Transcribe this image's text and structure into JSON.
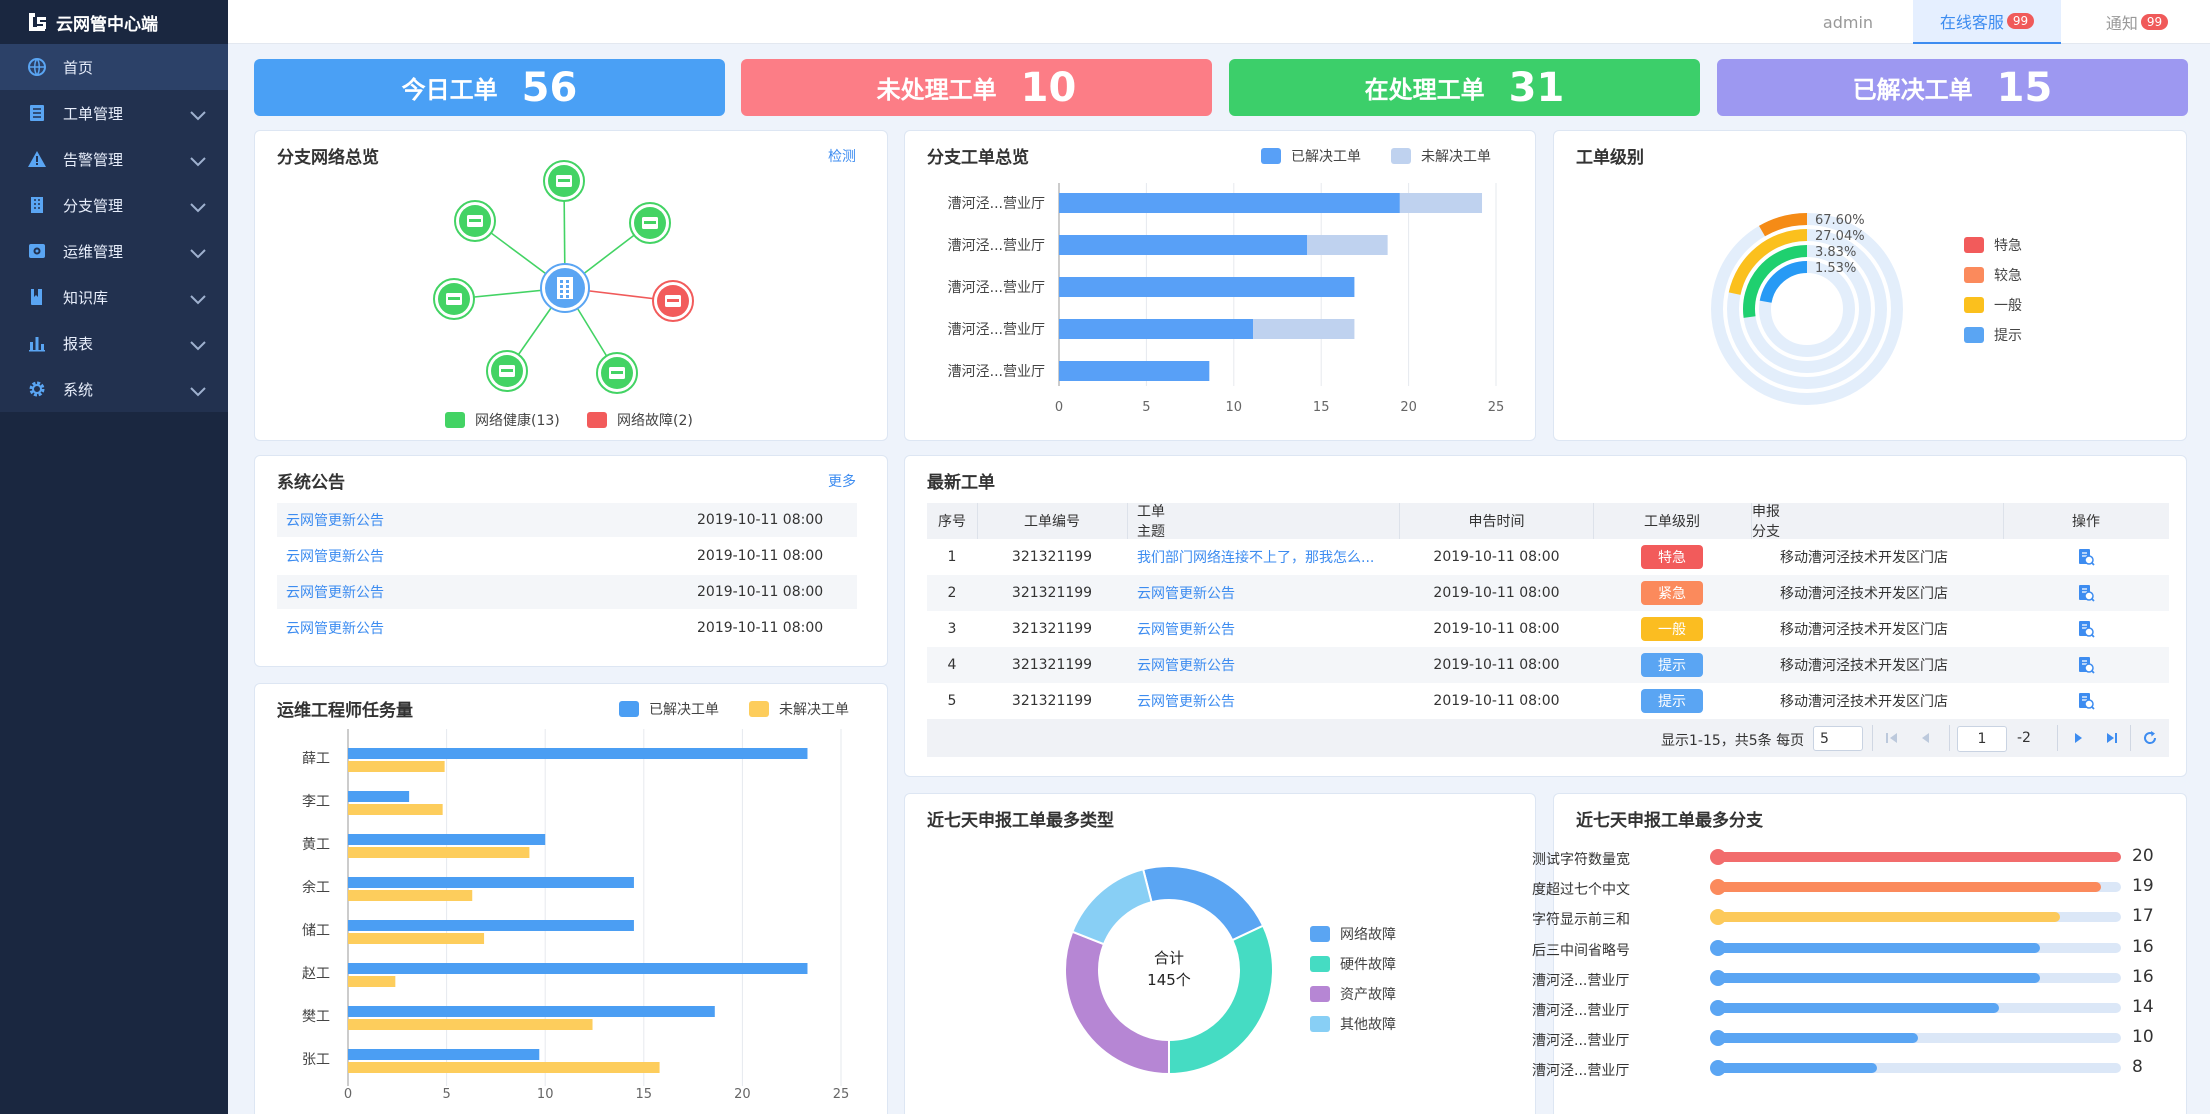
{
  "app": {
    "title": "云网管中心端"
  },
  "sidebar": {
    "items": [
      {
        "label": "首页",
        "icon": "globe-icon",
        "active": true
      },
      {
        "label": "工单管理",
        "icon": "list-icon"
      },
      {
        "label": "告警管理",
        "icon": "warning-icon"
      },
      {
        "label": "分支管理",
        "icon": "building-icon"
      },
      {
        "label": "运维管理",
        "icon": "maintenance-icon"
      },
      {
        "label": "知识库",
        "icon": "book-icon"
      },
      {
        "label": "报表",
        "icon": "report-icon"
      },
      {
        "label": "系统",
        "icon": "gear-icon"
      }
    ]
  },
  "topbar": {
    "user": "admin",
    "service_label": "在线客服",
    "service_badge": "99",
    "notice_label": "通知",
    "notice_badge": "99"
  },
  "stats": [
    {
      "label": "今日工单",
      "value": "56",
      "color": "#4aa0f5"
    },
    {
      "label": "未处理工单",
      "value": "10",
      "color": "#fc7d86"
    },
    {
      "label": "在处理工单",
      "value": "31",
      "color": "#3ccf6a"
    },
    {
      "label": "已解决工单",
      "value": "15",
      "color": "#9d98f1"
    }
  ],
  "network": {
    "title": "分支网络总览",
    "link": "检测",
    "legend": [
      "网络健康(13)",
      "网络故障(2)"
    ]
  },
  "branch_tickets": {
    "title": "分支工单总览",
    "legend": [
      "已解决工单",
      "未解决工单"
    ],
    "chart_data": {
      "type": "bar",
      "orientation": "horizontal",
      "stacked": true,
      "categories": [
        "漕河泾...营业厅",
        "漕河泾...营业厅",
        "漕河泾...营业厅",
        "漕河泾...营业厅",
        "漕河泾...营业厅"
      ],
      "series": [
        {
          "name": "已解决工单",
          "values": [
            19.5,
            14.2,
            16.9,
            11.1,
            8.6
          ],
          "color": "#58a0f7"
        },
        {
          "name": "未解决工单",
          "values": [
            4.7,
            4.6,
            0,
            5.8,
            0
          ],
          "color": "#bfd2ef"
        }
      ],
      "xlim": [
        0,
        25
      ],
      "xticks": [
        "0",
        "5",
        "10",
        "15",
        "20",
        "25"
      ]
    }
  },
  "level": {
    "title": "工单级别",
    "legend": [
      "特急",
      "较急",
      "一般",
      "提示"
    ],
    "chart_data": {
      "type": "radial-bar",
      "labels": [
        "67.60%",
        "27.04%",
        "3.83%",
        "1.53%"
      ],
      "values": [
        67.6,
        27.04,
        3.83,
        1.53
      ],
      "colors": [
        "#f58b16",
        "#fbc01d",
        "#1fd06f",
        "#279af5"
      ]
    }
  },
  "announce": {
    "title": "系统公告",
    "link": "更多",
    "rows": [
      {
        "title": "云网管更新公告",
        "date": "2019-10-11 08:00"
      },
      {
        "title": "云网管更新公告",
        "date": "2019-10-11 08:00"
      },
      {
        "title": "云网管更新公告",
        "date": "2019-10-11 08:00"
      },
      {
        "title": "云网管更新公告",
        "date": "2019-10-11 08:00"
      }
    ]
  },
  "latest": {
    "title": "最新工单",
    "headers": [
      "序号",
      "工单编号",
      "工单主题",
      "申告时间",
      "工单级别",
      "申报分支",
      "操作"
    ],
    "rows": [
      {
        "no": "1",
        "id": "321321199",
        "subject": "我们部门网络连接不上了，那我怎么...",
        "time": "2019-10-11 08:00",
        "level": "特急",
        "level_color": "#f25b5b",
        "branch": "移动漕河泾技术开发区门店"
      },
      {
        "no": "2",
        "id": "321321199",
        "subject": "云网管更新公告",
        "time": "2019-10-11 08:00",
        "level": "紧急",
        "level_color": "#fb8a5c",
        "branch": "移动漕河泾技术开发区门店"
      },
      {
        "no": "3",
        "id": "321321199",
        "subject": "云网管更新公告",
        "time": "2019-10-11 08:00",
        "level": "一般",
        "level_color": "#fbbd21",
        "branch": "移动漕河泾技术开发区门店"
      },
      {
        "no": "4",
        "id": "321321199",
        "subject": "云网管更新公告",
        "time": "2019-10-11 08:00",
        "level": "提示",
        "level_color": "#5aa5f3",
        "branch": "移动漕河泾技术开发区门店"
      },
      {
        "no": "5",
        "id": "321321199",
        "subject": "云网管更新公告",
        "time": "2019-10-11 08:00",
        "level": "提示",
        "level_color": "#5aa5f3",
        "branch": "移动漕河泾技术开发区门店"
      }
    ],
    "pagination": {
      "summary": "显示1-15，共5条 每页",
      "page_size": "5",
      "current_page": "1",
      "total_pages": "-2"
    }
  },
  "engineers": {
    "title": "运维工程师任务量",
    "legend": [
      "已解决工单",
      "未解决工单"
    ],
    "chart_data": {
      "type": "bar",
      "orientation": "horizontal",
      "categories": [
        "薛工",
        "李工",
        "黄工",
        "余工",
        "储工",
        "赵工",
        "樊工",
        "张工"
      ],
      "series": [
        {
          "name": "已解决工单",
          "values": [
            23.3,
            3.1,
            10,
            14.5,
            14.5,
            23.3,
            18.6,
            9.7
          ],
          "color": "#4b9ef3"
        },
        {
          "name": "未解决工单",
          "values": [
            4.9,
            4.8,
            9.2,
            6.3,
            6.9,
            2.4,
            12.4,
            15.8
          ],
          "color": "#fdcd5c"
        }
      ],
      "xlim": [
        0,
        25
      ],
      "xticks": [
        "0",
        "5",
        "10",
        "15",
        "20",
        "25"
      ]
    }
  },
  "types": {
    "title": "近七天申报工单最多类型",
    "center_label": "合计",
    "center_value": "145个",
    "legend": [
      "网络故障",
      "硬件故障",
      "资产故障",
      "其他故障"
    ],
    "chart_data": {
      "type": "pie",
      "donut": true,
      "labels": [
        "网络故障",
        "硬件故障",
        "资产故障",
        "其他故障"
      ],
      "values": [
        22,
        32,
        31,
        15
      ],
      "colors": [
        "#5aa5f3",
        "#45dcc3",
        "#b686d4",
        "#88cff5"
      ]
    }
  },
  "top_branches": {
    "title": "近七天申报工单最多分支",
    "chart_data": {
      "type": "bar",
      "orientation": "horizontal",
      "categories": [
        "测试字符数量宽",
        "度超过七个中文",
        "字符显示前三和",
        "后三中间省略号",
        "漕河泾...营业厅",
        "漕河泾...营业厅",
        "漕河泾...营业厅",
        "漕河泾...营业厅"
      ],
      "values": [
        20,
        19,
        17,
        16,
        16,
        14,
        10,
        8
      ],
      "value_labels": [
        "20",
        "19",
        "17",
        "16",
        "16",
        "14",
        "10",
        "8"
      ],
      "max": 20,
      "colors": [
        "#f26c6c",
        "#fb8a5c",
        "#fcc95a",
        "#5aa5f3",
        "#5aa5f3",
        "#5aa5f3",
        "#5aa5f3",
        "#5aa5f3"
      ]
    }
  }
}
